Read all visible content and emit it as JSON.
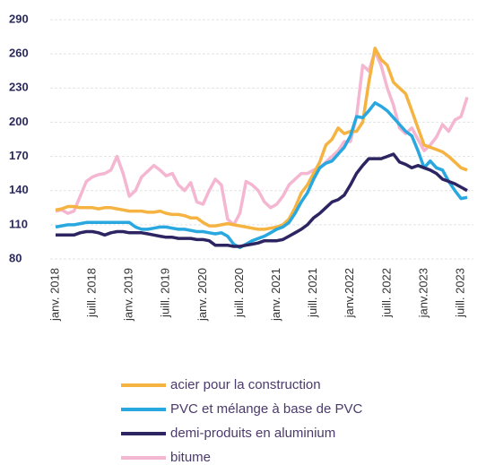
{
  "chart_data": {
    "type": "line",
    "categories": [
      "janv. 2018",
      null,
      null,
      null,
      null,
      null,
      "juill. 2018",
      null,
      null,
      null,
      null,
      null,
      "janv. 2019",
      null,
      null,
      null,
      null,
      null,
      "juill. 2019",
      null,
      null,
      null,
      null,
      null,
      "janv. 2020",
      null,
      null,
      null,
      null,
      null,
      "juill. 2020",
      null,
      null,
      null,
      null,
      null,
      "janv. 2021",
      null,
      null,
      null,
      null,
      null,
      "juill. 2021",
      null,
      null,
      null,
      null,
      null,
      "janv.2022",
      null,
      null,
      null,
      null,
      null,
      "juill. 2022",
      null,
      null,
      null,
      null,
      null,
      "janv.2023",
      null,
      null,
      null,
      null,
      null,
      "juill. 2023",
      null
    ],
    "series": [
      {
        "name": "acier pour la construction",
        "color": "#f5b342",
        "values": [
          123,
          124,
          126,
          126,
          125,
          125,
          125,
          124,
          125,
          125,
          124,
          123,
          122,
          122,
          122,
          121,
          121,
          122,
          120,
          119,
          119,
          118,
          116,
          116,
          112,
          109,
          109,
          110,
          111,
          110,
          109,
          108,
          107,
          106,
          106,
          107,
          108,
          110,
          115,
          125,
          138,
          145,
          155,
          165,
          180,
          185,
          195,
          190,
          192,
          192,
          200,
          235,
          265,
          255,
          250,
          235,
          230,
          225,
          210,
          195,
          180,
          178,
          176,
          174,
          170,
          165,
          160,
          158
        ]
      },
      {
        "name": "PVC et mélange à base de PVC",
        "color": "#29a8e0",
        "values": [
          108,
          109,
          110,
          110,
          111,
          112,
          112,
          112,
          112,
          112,
          112,
          112,
          112,
          108,
          106,
          106,
          107,
          108,
          108,
          107,
          106,
          106,
          105,
          104,
          104,
          103,
          102,
          103,
          100,
          93,
          90,
          93,
          96,
          98,
          100,
          103,
          106,
          108,
          112,
          120,
          130,
          138,
          150,
          160,
          164,
          166,
          172,
          178,
          188,
          205,
          204,
          210,
          217,
          214,
          210,
          204,
          198,
          192,
          188,
          175,
          160,
          166,
          160,
          158,
          148,
          140,
          133,
          134
        ]
      },
      {
        "name": "demi-produits en aluminium",
        "color": "#2c2562",
        "values": [
          101,
          101,
          101,
          101,
          103,
          104,
          104,
          103,
          101,
          103,
          104,
          104,
          103,
          103,
          103,
          102,
          101,
          100,
          99,
          99,
          98,
          98,
          98,
          97,
          97,
          96,
          92,
          92,
          92,
          91,
          91,
          92,
          93,
          94,
          96,
          96,
          96,
          97,
          100,
          103,
          106,
          110,
          116,
          120,
          125,
          130,
          132,
          136,
          145,
          155,
          162,
          168,
          168,
          168,
          170,
          172,
          165,
          163,
          160,
          162,
          160,
          158,
          155,
          150,
          148,
          146,
          143,
          140
        ]
      },
      {
        "name": "bitume",
        "color": "#f4b6d0",
        "values": [
          122,
          123,
          120,
          122,
          135,
          148,
          152,
          154,
          155,
          158,
          170,
          155,
          135,
          140,
          152,
          157,
          162,
          158,
          153,
          155,
          145,
          140,
          147,
          130,
          128,
          140,
          150,
          145,
          115,
          110,
          120,
          148,
          145,
          140,
          130,
          125,
          128,
          135,
          145,
          150,
          155,
          155,
          158,
          160,
          165,
          170,
          175,
          183,
          183,
          205,
          250,
          245,
          262,
          250,
          230,
          215,
          195,
          190,
          195,
          185,
          175,
          180,
          187,
          198,
          192,
          202,
          205,
          222
        ]
      }
    ],
    "ylim": [
      80,
      290
    ],
    "yticks": [
      80,
      110,
      140,
      170,
      200,
      230,
      260,
      290
    ],
    "grid": true
  }
}
